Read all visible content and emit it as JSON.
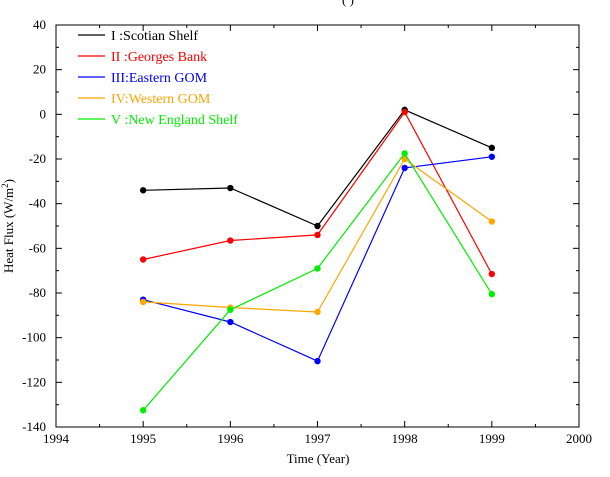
{
  "chart_data": {
    "type": "line",
    "top_title_fragment": "(         )",
    "xlabel": "Time (Year)",
    "ylabel_main": "Heat Flux (W/m",
    "ylabel_sup": "2",
    "ylabel_end": ")",
    "xlim": [
      1994,
      2000
    ],
    "ylim": [
      -140,
      40
    ],
    "x_ticks": [
      1994,
      1995,
      1996,
      1997,
      1998,
      1999,
      2000
    ],
    "y_ticks": [
      40,
      20,
      0,
      -20,
      -40,
      -60,
      -80,
      -100,
      -120,
      -140
    ],
    "x": [
      1995,
      1996,
      1997,
      1998,
      1999
    ],
    "grid": false,
    "legend_position": "top-left",
    "series": [
      {
        "name": "I  :Scotian Shelf",
        "color": "#000000",
        "values": [
          -34,
          -33,
          -50,
          2,
          -15
        ]
      },
      {
        "name": "II :Georges Bank",
        "color": "#ff0000",
        "values": [
          -65,
          -56.5,
          -54,
          1,
          -71.5
        ]
      },
      {
        "name": "III:Eastern GOM",
        "color": "#0000ff",
        "values": [
          -83,
          -93,
          -110.5,
          -24,
          -19
        ]
      },
      {
        "name": "IV:Western GOM",
        "color": "#ffa500",
        "values": [
          -84,
          -86.5,
          -88.5,
          -20,
          -48
        ]
      },
      {
        "name": "V :New England Shelf",
        "color": "#00ee00",
        "values": [
          -132.5,
          -87.5,
          -69,
          -17.5,
          -80.5
        ]
      }
    ]
  }
}
